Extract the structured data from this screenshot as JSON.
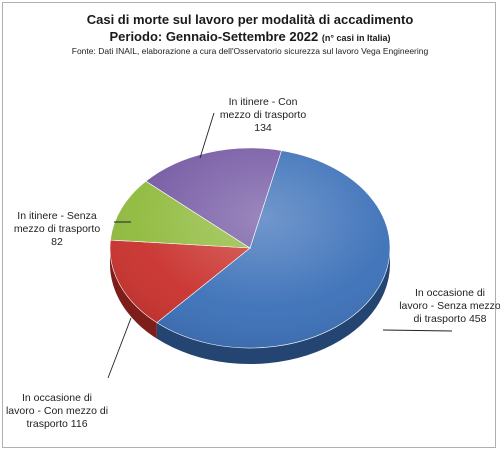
{
  "chart_data": {
    "type": "pie",
    "title": "Casi di morte sul lavoro per modalità di accadimento",
    "subtitle": "Periodo: Gennaio-Settembre 2022",
    "subtitle_note": "(n° casi in Italia)",
    "source": "Fonte: Dati INAIL, elaborazione a cura dell'Osservatorio sicurezza sul lavoro Vega Engineering",
    "slices": [
      {
        "label": "In occasione di lavoro - Senza mezzo di trasporto",
        "label_lines": [
          "In occasione di",
          "lavoro - Senza mezzo",
          "di trasporto 458"
        ],
        "value": 458,
        "color": "#3a6fb8"
      },
      {
        "label": "In occasione di lavoro - Con mezzo di trasporto",
        "label_lines": [
          "In occasione di",
          "lavoro - Con mezzo di",
          "trasporto 116"
        ],
        "value": 116,
        "color": "#c9302c"
      },
      {
        "label": "In itinere - Senza mezzo di trasporto",
        "label_lines": [
          "In itinere - Senza",
          "mezzo di trasporto",
          "82"
        ],
        "value": 82,
        "color": "#8fba3c"
      },
      {
        "label": "In itinere - Con mezzo di trasporto",
        "label_lines": [
          "In itinere - Con",
          "mezzo di trasporto",
          "134"
        ],
        "value": 134,
        "color": "#7458a3"
      }
    ]
  }
}
